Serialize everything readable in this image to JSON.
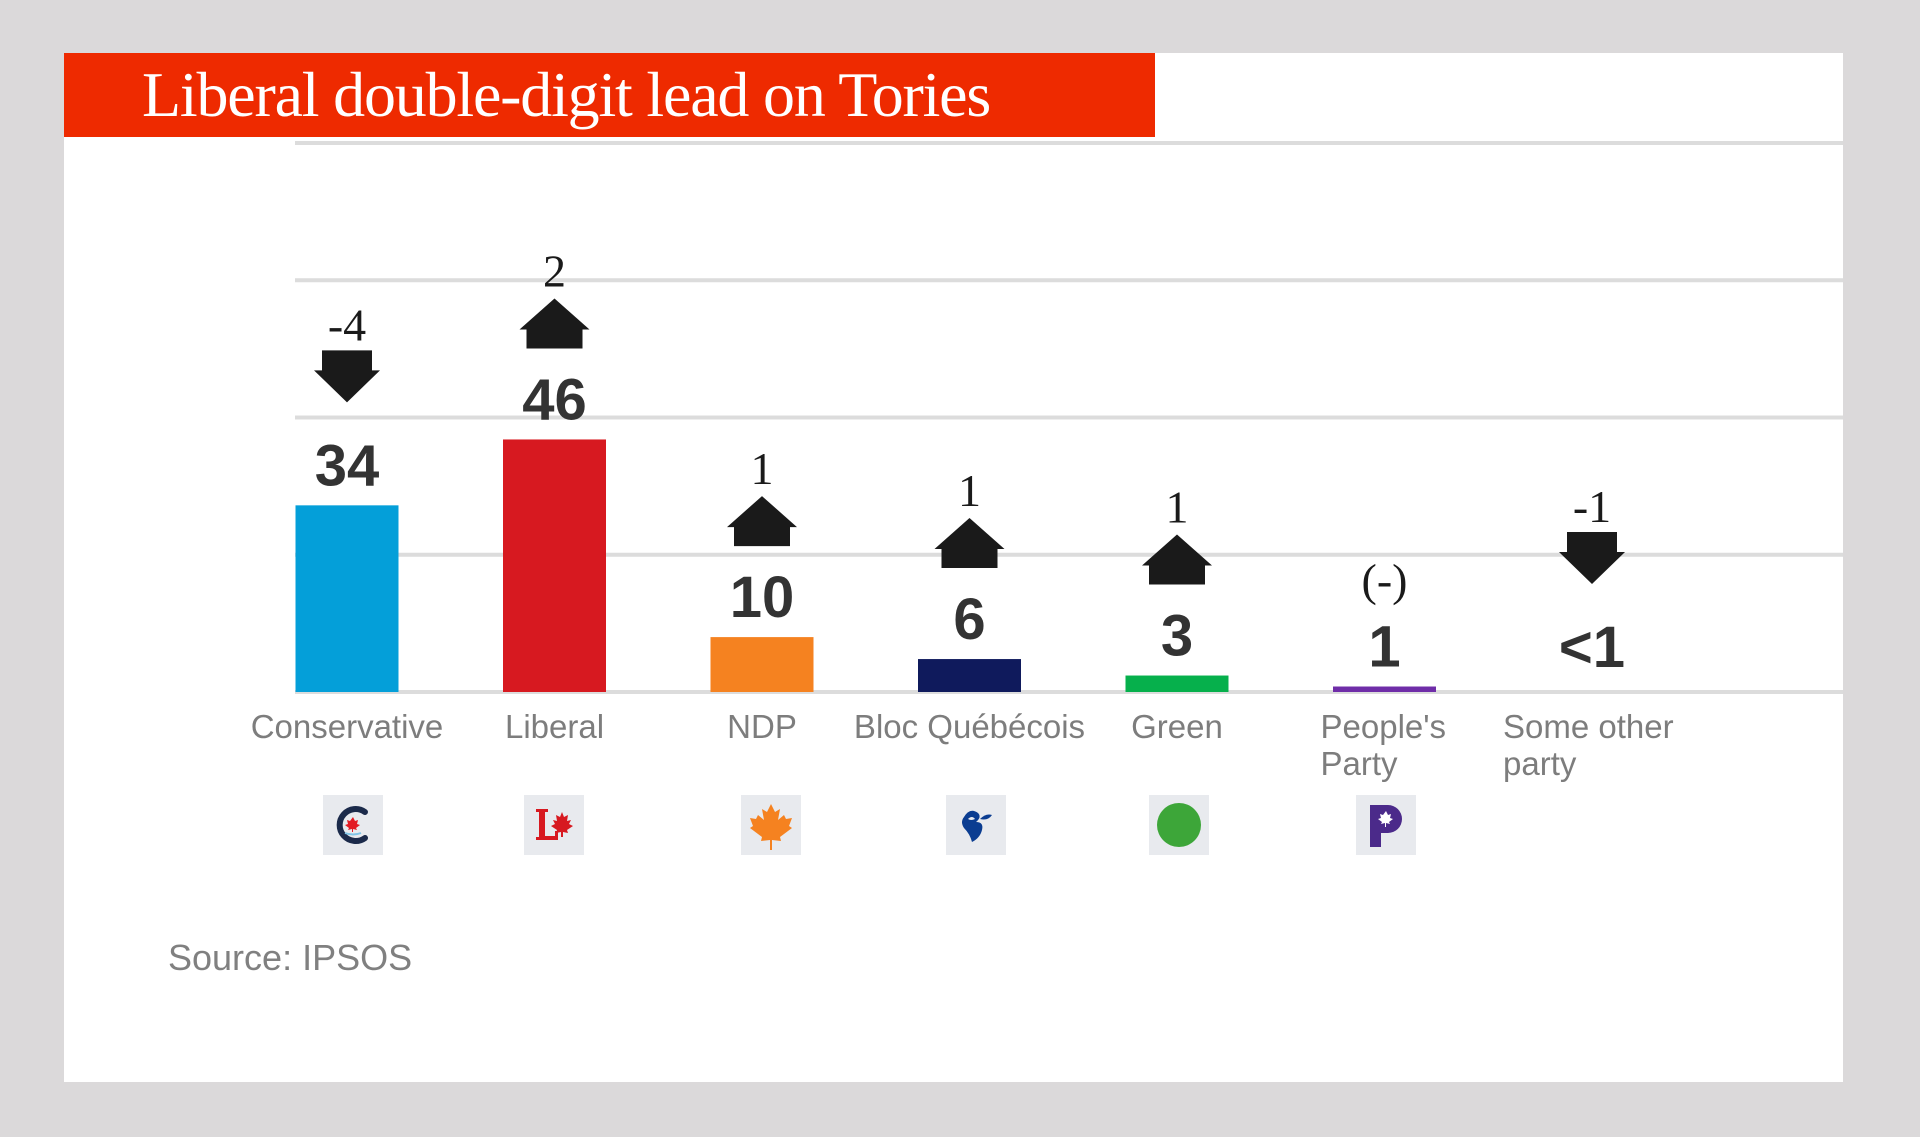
{
  "colors": {
    "page_background": "#dbd9da",
    "title_band": "#ee2a00",
    "gridline": "#dcdcdc",
    "value_text": "#333333",
    "change_text": "#1a1a1a",
    "arrow": "#1a1a1a",
    "category_text": "#7d7d7d"
  },
  "chart_data": {
    "type": "bar",
    "title": "Liberal double-digit lead on Tories",
    "xlabel": "",
    "ylabel": "",
    "ylim": [
      0,
      100
    ],
    "grid": true,
    "gridline_values": [
      0,
      25,
      50,
      75,
      100
    ],
    "categories": [
      "Conservative",
      "Liberal",
      "NDP",
      "Bloc Québécois",
      "Green",
      "People's Party",
      "Some other party"
    ],
    "category_lines": [
      [
        "Conservative"
      ],
      [
        "Liberal"
      ],
      [
        "NDP"
      ],
      [
        "Bloc Québécois"
      ],
      [
        "Green"
      ],
      [
        "People's",
        "Party"
      ],
      [
        "Some other",
        "party"
      ]
    ],
    "values": [
      34,
      46,
      10,
      6,
      3,
      1,
      0
    ],
    "value_labels": [
      "34",
      "46",
      "10",
      "6",
      "3",
      "1",
      "<1"
    ],
    "changes": [
      -4,
      2,
      1,
      1,
      1,
      null,
      -1
    ],
    "change_labels": [
      "-4",
      "2",
      "1",
      "1",
      "1",
      "(-)",
      "-1"
    ],
    "change_directions": [
      "down",
      "up",
      "up",
      "up",
      "up",
      "none",
      "down"
    ],
    "bar_colors": [
      "#049fd9",
      "#d71920",
      "#f58220",
      "#0f1a5c",
      "#06b04c",
      "#6f2da8",
      "#cccccc"
    ],
    "source": "Source: IPSOS"
  },
  "logos": [
    {
      "party": "Conservative",
      "icon": "conservative-logo-icon"
    },
    {
      "party": "Liberal",
      "icon": "liberal-logo-icon"
    },
    {
      "party": "NDP",
      "icon": "ndp-maple-leaf-icon"
    },
    {
      "party": "Bloc Québécois",
      "icon": "bloc-logo-icon"
    },
    {
      "party": "Green",
      "icon": "green-circle-icon"
    },
    {
      "party": "People's Party",
      "icon": "ppc-logo-icon"
    }
  ]
}
